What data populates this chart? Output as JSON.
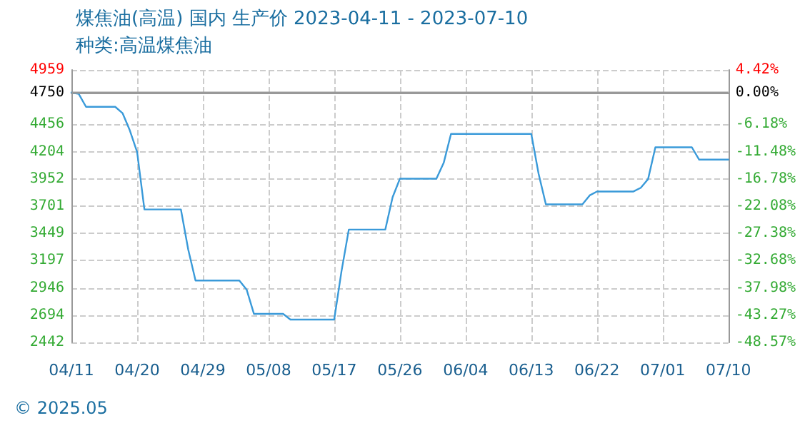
{
  "chart_data": {
    "type": "line",
    "title": "煤焦油(高温) 国内 生产价 2023-04-11 - 2023-07-10",
    "subtitle": "种类:高温煤焦油",
    "annotations": [
      "© 2025.05"
    ],
    "x": [
      "2023-04-11",
      "2023-04-12",
      "2023-04-13",
      "2023-04-17",
      "2023-04-18",
      "2023-04-19",
      "2023-04-20",
      "2023-04-21",
      "2023-04-26",
      "2023-04-27",
      "2023-04-28",
      "2023-05-04",
      "2023-05-05",
      "2023-05-06",
      "2023-05-10",
      "2023-05-11",
      "2023-05-17",
      "2023-05-18",
      "2023-05-19",
      "2023-05-24",
      "2023-05-25",
      "2023-05-26",
      "2023-05-31",
      "2023-06-01",
      "2023-06-02",
      "2023-06-13",
      "2023-06-14",
      "2023-06-15",
      "2023-06-20",
      "2023-06-21",
      "2023-06-22",
      "2023-06-27",
      "2023-06-28",
      "2023-06-29",
      "2023-06-30",
      "2023-07-05",
      "2023-07-06",
      "2023-07-10"
    ],
    "series": [
      {
        "color": "#3a9ad9",
        "values": [
          4750,
          4737,
          4618,
          4618,
          4560,
          4400,
          4200,
          3670,
          3670,
          3300,
          3014,
          3014,
          2930,
          2706,
          2706,
          2653,
          2653,
          3100,
          3484,
          3484,
          3783,
          3954,
          3954,
          4100,
          4368,
          4368,
          4000,
          3717,
          3717,
          3800,
          3836,
          3836,
          3870,
          3950,
          4244,
          4244,
          4130,
          4130
        ]
      }
    ],
    "xlim": [
      "2023-04-11",
      "2023-07-10"
    ],
    "xticks": [
      {
        "value": "2023-04-11",
        "label": "04/11"
      },
      {
        "value": "2023-04-20",
        "label": "04/20"
      },
      {
        "value": "2023-04-29",
        "label": "04/29"
      },
      {
        "value": "2023-05-08",
        "label": "05/08"
      },
      {
        "value": "2023-05-17",
        "label": "05/17"
      },
      {
        "value": "2023-05-26",
        "label": "05/26"
      },
      {
        "value": "2023-06-04",
        "label": "06/04"
      },
      {
        "value": "2023-06-13",
        "label": "06/13"
      },
      {
        "value": "2023-06-22",
        "label": "06/22"
      },
      {
        "value": "2023-07-01",
        "label": "07/01"
      },
      {
        "value": "2023-07-10",
        "label": "07/10"
      }
    ],
    "ylim": [
      2442,
      4959
    ],
    "yticks": [
      2442,
      2694,
      2946,
      3197,
      3449,
      3701,
      3952,
      4204,
      4456,
      4750,
      4959
    ],
    "y2lim": [
      -48.57,
      4.42
    ],
    "y2ticks": [
      {
        "value": -48.57,
        "label": "-48.57%"
      },
      {
        "value": -43.27,
        "label": "-43.27%"
      },
      {
        "value": -37.98,
        "label": "-37.98%"
      },
      {
        "value": -32.68,
        "label": "-32.68%"
      },
      {
        "value": -27.38,
        "label": "-27.38%"
      },
      {
        "value": -22.08,
        "label": "-22.08%"
      },
      {
        "value": -16.78,
        "label": "-16.78%"
      },
      {
        "value": -11.48,
        "label": "-11.48%"
      },
      {
        "value": -6.18,
        "label": "-6.18%"
      },
      {
        "value": 0,
        "label": "0.00%"
      },
      {
        "value": 4.42,
        "label": "4.42%"
      }
    ],
    "ref_lines": [
      {
        "axis": "y",
        "value": 4750,
        "color": "#999999"
      }
    ],
    "grid": true,
    "marker": "none",
    "line_style": "solid"
  }
}
